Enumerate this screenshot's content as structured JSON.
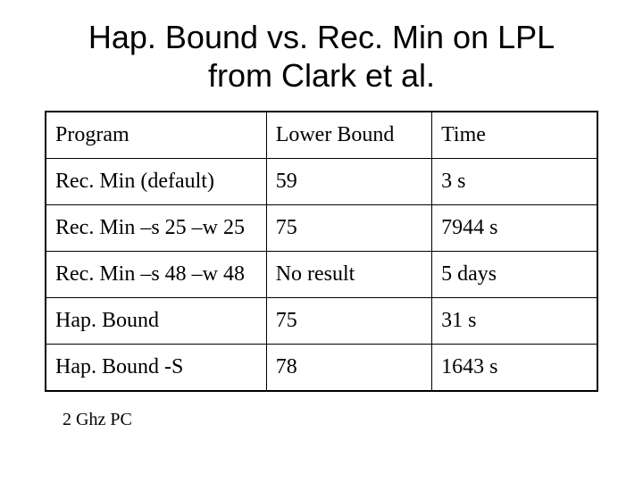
{
  "slide": {
    "title_line1": "Hap. Bound vs. Rec. Min on LPL",
    "title_line2": "from Clark et al.",
    "footnote": "2 Ghz PC"
  },
  "table": {
    "columns": [
      "Program",
      "Lower Bound",
      "Time"
    ],
    "rows": [
      [
        "Rec. Min (default)",
        "59",
        "3 s"
      ],
      [
        "Rec. Min –s 25 –w 25",
        "75",
        "7944 s"
      ],
      [
        "Rec. Min –s 48 –w 48",
        "No result",
        "5 days"
      ],
      [
        "Hap. Bound",
        "75",
        "31 s"
      ],
      [
        "Hap. Bound -S",
        "78",
        "1643 s"
      ]
    ],
    "column_widths": [
      "40%",
      "30%",
      "30%"
    ],
    "border_color": "#000000",
    "background_color": "#ffffff",
    "cell_fontsize": 24,
    "title_fontsize": 36,
    "footnote_fontsize": 20
  }
}
